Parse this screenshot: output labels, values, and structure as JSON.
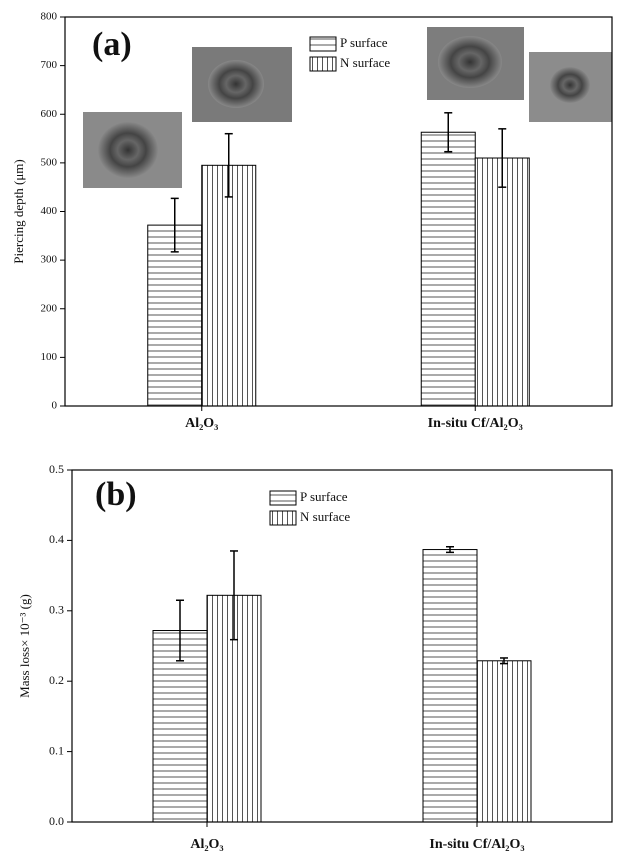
{
  "chart_data": [
    {
      "type": "bar",
      "panel_label": "(a)",
      "ylabel": "Piercing depth (μm)",
      "categories": [
        "Al₂O₃",
        "In-situ Cf/Al₂O₃"
      ],
      "series": [
        {
          "name": "P surface",
          "color": "#000000",
          "values": [
            372,
            563
          ],
          "errors": [
            55,
            40
          ]
        },
        {
          "name": "N surface",
          "color": "#000000",
          "values": [
            495,
            510
          ],
          "errors": [
            65,
            60
          ]
        }
      ],
      "ylim": [
        0,
        800
      ],
      "yticks": [
        0,
        100,
        200,
        300,
        400,
        500,
        600,
        700,
        800
      ],
      "legend": "top-center"
    },
    {
      "type": "bar",
      "panel_label": "(b)",
      "ylabel": "Mass loss× 10⁻³ (g)",
      "categories": [
        "Al₂O₃",
        "In-situ Cf/Al₂O₃"
      ],
      "series": [
        {
          "name": "P surface",
          "color": "#000000",
          "values": [
            0.272,
            0.387
          ],
          "errors": [
            0.043,
            0.004
          ]
        },
        {
          "name": "N surface",
          "color": "#000000",
          "values": [
            0.322,
            0.229
          ],
          "errors": [
            0.063,
            0.004
          ]
        }
      ],
      "ylim": [
        0,
        0.5
      ],
      "yticks": [
        {
          "value": 0,
          "label": "0.0"
        },
        0.1,
        0.2,
        0.3,
        0.4,
        0.5
      ],
      "legend": "top-center"
    }
  ]
}
